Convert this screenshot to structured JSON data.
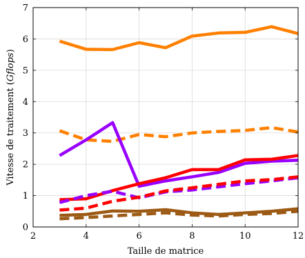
{
  "chart_data": {
    "type": "line",
    "xlabel": "Taille de matrice",
    "ylabel_prefix": "Vitesse de traitement (",
    "ylabel_math": "Gflops",
    "ylabel_suffix": ")",
    "xlim": [
      2,
      12
    ],
    "ylim": [
      0,
      7
    ],
    "xticks": [
      2,
      4,
      6,
      8,
      10,
      12
    ],
    "yticks": [
      0,
      1,
      2,
      3,
      4,
      5,
      6,
      7
    ],
    "grid": true,
    "x": [
      3,
      4,
      5,
      6,
      7,
      8,
      9,
      10,
      11,
      12
    ],
    "series": [
      {
        "color": "#ff8000",
        "style": "solid",
        "values": [
          5.93,
          5.67,
          5.66,
          5.88,
          5.72,
          6.09,
          6.19,
          6.21,
          6.39,
          6.17
        ]
      },
      {
        "color": "#ff8000",
        "style": "dashed",
        "values": [
          3.07,
          2.78,
          2.73,
          2.95,
          2.88,
          3.0,
          3.05,
          3.08,
          3.17,
          3.03
        ]
      },
      {
        "color": "#9900ff",
        "style": "solid",
        "values": [
          2.28,
          2.78,
          3.33,
          1.3,
          1.47,
          1.6,
          1.74,
          2.03,
          2.1,
          2.13
        ]
      },
      {
        "color": "#ff0000",
        "style": "solid",
        "values": [
          0.87,
          0.9,
          1.16,
          1.38,
          1.57,
          1.83,
          1.83,
          2.14,
          2.16,
          2.28
        ]
      },
      {
        "color": "#9900ff",
        "style": "dashed",
        "values": [
          0.78,
          1.0,
          1.14,
          0.93,
          1.12,
          1.18,
          1.28,
          1.38,
          1.47,
          1.57
        ]
      },
      {
        "color": "#ff0000",
        "style": "dashed",
        "values": [
          0.54,
          0.6,
          0.82,
          0.95,
          1.15,
          1.25,
          1.36,
          1.47,
          1.51,
          1.6
        ]
      },
      {
        "color": "#9c5a15",
        "style": "solid",
        "values": [
          0.37,
          0.4,
          0.51,
          0.5,
          0.55,
          0.45,
          0.4,
          0.45,
          0.5,
          0.58
        ]
      },
      {
        "color": "#9c5a15",
        "style": "dashed",
        "values": [
          0.26,
          0.3,
          0.35,
          0.4,
          0.45,
          0.38,
          0.35,
          0.4,
          0.43,
          0.5
        ]
      }
    ]
  }
}
